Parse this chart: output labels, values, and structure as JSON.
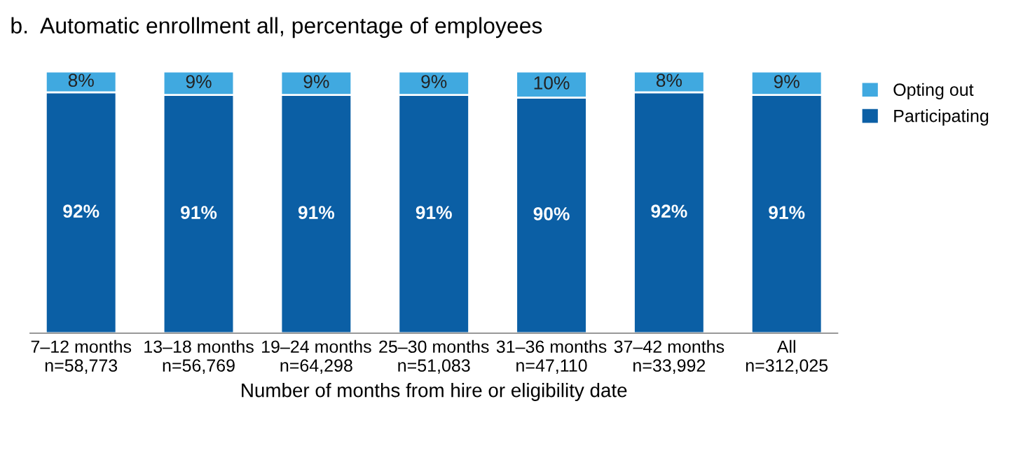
{
  "chart_data": {
    "type": "bar",
    "title": "b.  Automatic enrollment all, percentage of employees",
    "xlabel": "Number of months from hire or eligibility date",
    "categories": [
      "7–12 months\nn=58,773",
      "13–18 months\nn=56,769",
      "19–24 months\nn=64,298",
      "25–30 months\nn=51,083",
      "31–36 months\nn=47,110",
      "37–42 months\nn=33,992",
      "All\nn=312,025"
    ],
    "stacked": true,
    "series": [
      {
        "name": "Participating",
        "color": "#0b5fa5",
        "values": [
          92,
          91,
          91,
          91,
          90,
          92,
          91
        ],
        "value_labels": [
          "92%",
          "91%",
          "91%",
          "91%",
          "90%",
          "92%",
          "91%"
        ]
      },
      {
        "name": "Opting out",
        "color": "#40a9e0",
        "values": [
          8,
          9,
          9,
          9,
          10,
          8,
          9
        ],
        "value_labels": [
          "8%",
          "9%",
          "9%",
          "9%",
          "10%",
          "8%",
          "9%"
        ]
      }
    ],
    "legend": "right"
  }
}
